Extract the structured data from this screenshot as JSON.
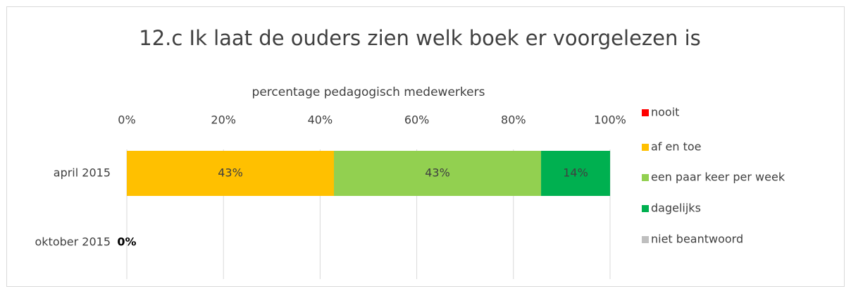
{
  "chart_data": {
    "type": "stacked-bar-horizontal",
    "title": "12.c Ik laat de ouders zien welk boek er voorgelezen is",
    "x_label": "percentage pedagogisch medewerkers",
    "categories": [
      "april 2015",
      "oktober 2015"
    ],
    "series": [
      {
        "name": "nooit",
        "color": "#ff0000",
        "values": [
          0,
          0
        ],
        "value_labels": [
          null,
          "0%"
        ]
      },
      {
        "name": "af en toe",
        "color": "#ffc000",
        "values": [
          42.86,
          0
        ],
        "value_labels": [
          "43%",
          null
        ]
      },
      {
        "name": "een paar keer per week",
        "color": "#92d050",
        "values": [
          42.86,
          0
        ],
        "value_labels": [
          "43%",
          null
        ]
      },
      {
        "name": "dagelijks",
        "color": "#00b050",
        "values": [
          14.28,
          0
        ],
        "value_labels": [
          "14%",
          null
        ]
      },
      {
        "name": "niet beantwoord",
        "color": "#bfbfbf",
        "values": [
          0,
          0
        ],
        "value_labels": [
          null,
          null
        ]
      }
    ],
    "xlim": [
      0,
      100
    ],
    "xticks": [
      {
        "value": 0,
        "label": "0%"
      },
      {
        "value": 20,
        "label": "20%"
      },
      {
        "value": 40,
        "label": "40%"
      },
      {
        "value": 60,
        "label": "60%"
      },
      {
        "value": 80,
        "label": "80%"
      },
      {
        "value": 100,
        "label": "100%"
      }
    ],
    "grid": true,
    "legend": "right"
  }
}
